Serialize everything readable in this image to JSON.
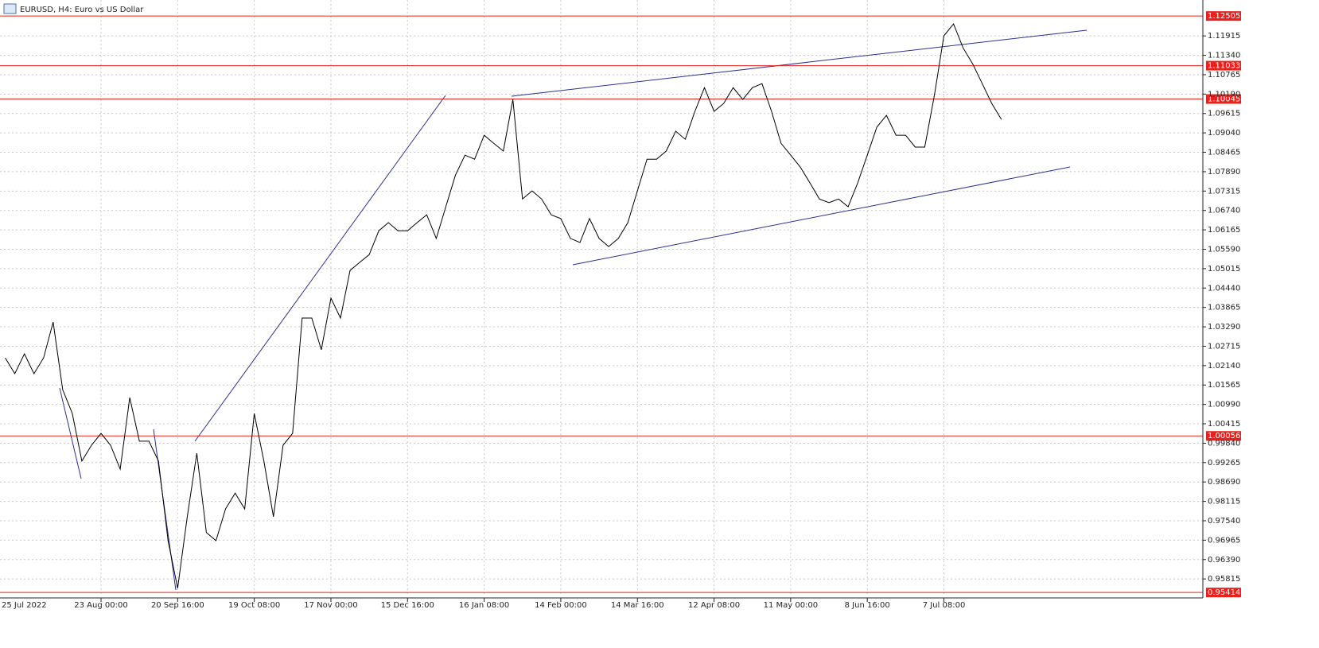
{
  "chart_data": {
    "type": "line",
    "title": "EURUSD, H4:  Euro vs US Dollar",
    "color": "#000000",
    "grid": true,
    "ylim": [
      0.953,
      1.1298
    ],
    "yticks": [
      1.11915,
      {
        "value": 1.1134,
        "label": "1.11340"
      },
      1.10765,
      {
        "value": 1.1019,
        "label": "1.10190"
      },
      1.09615,
      {
        "value": 1.0904,
        "label": "1.09040"
      },
      1.08465,
      {
        "value": 1.0789,
        "label": "1.07890"
      },
      1.07315,
      {
        "value": 1.0674,
        "label": "1.06740"
      },
      1.06165,
      {
        "value": 1.0559,
        "label": "1.05590"
      },
      1.05015,
      {
        "value": 1.0444,
        "label": "1.04440"
      },
      1.03865,
      {
        "value": 1.0329,
        "label": "1.03290"
      },
      1.02715,
      {
        "value": 1.0214,
        "label": "1.02140"
      },
      1.01565,
      {
        "value": 1.0099,
        "label": "1.00990"
      },
      1.00415,
      {
        "value": 0.9984,
        "label": "0.99840"
      },
      0.99265,
      {
        "value": 0.9869,
        "label": "0.98690"
      },
      0.98115,
      {
        "value": 0.9754,
        "label": "0.97540"
      },
      0.96965,
      {
        "value": 0.9639,
        "label": "0.96390"
      },
      0.95815
    ],
    "levels": [
      {
        "value": 1.12505,
        "color": "#e8211d"
      },
      {
        "value": 1.11033,
        "color": "#e8211d"
      },
      {
        "value": 1.10045,
        "color": "#e8211d"
      },
      {
        "value": 1.00056,
        "color": "#e8211d"
      },
      {
        "value": 0.95414,
        "color": "#e8211d"
      }
    ],
    "categories": [
      "25 Jul 2022",
      null,
      null,
      null,
      null,
      null,
      null,
      null,
      null,
      null,
      "23 Aug 00:00",
      null,
      null,
      null,
      null,
      null,
      null,
      null,
      "20 Sep 16:00",
      null,
      null,
      null,
      null,
      null,
      null,
      null,
      "19 Oct 08:00",
      null,
      null,
      null,
      null,
      null,
      null,
      null,
      "17 Nov 00:00",
      null,
      null,
      null,
      null,
      null,
      null,
      null,
      "15 Dec 16:00",
      null,
      null,
      null,
      null,
      null,
      null,
      null,
      "16 Jan 08:00",
      null,
      null,
      null,
      null,
      null,
      null,
      null,
      "14 Feb 00:00",
      null,
      null,
      null,
      null,
      null,
      null,
      null,
      "14 Mar 16:00",
      null,
      null,
      null,
      null,
      null,
      null,
      null,
      "12 Apr 08:00",
      null,
      null,
      null,
      null,
      null,
      null,
      null,
      "11 May 00:00",
      null,
      null,
      null,
      null,
      null,
      null,
      null,
      "8 Jun 16:00",
      null,
      null,
      null,
      null,
      null,
      null,
      null,
      "7 Jul 08:00",
      null,
      null,
      null,
      null,
      null,
      null,
      null,
      null,
      null,
      null,
      null,
      null,
      null,
      null,
      null,
      null,
      null,
      null,
      null,
      null,
      null,
      null,
      null,
      null,
      null,
      null,
      null
    ],
    "values": [
      1.0237,
      1.019,
      1.0249,
      1.019,
      1.0237,
      1.0343,
      1.0143,
      1.0072,
      0.9931,
      0.9978,
      1.0013,
      0.9978,
      0.9907,
      1.0119,
      0.999,
      0.999,
      0.9931,
      0.9695,
      0.9554,
      0.9766,
      0.9954,
      0.9719,
      0.9695,
      0.9789,
      0.9836,
      0.9789,
      1.0072,
      0.9931,
      0.9766,
      0.9978,
      1.0013,
      1.0355,
      1.0355,
      1.0261,
      1.0414,
      1.0355,
      1.0496,
      1.052,
      1.0543,
      1.0614,
      1.0638,
      1.0614,
      1.0614,
      1.0638,
      1.0661,
      1.0591,
      1.0685,
      1.0779,
      1.0838,
      1.0826,
      1.0897,
      1.0873,
      1.085,
      1.1003,
      1.0708,
      1.0732,
      1.0708,
      1.0661,
      1.065,
      1.0591,
      1.0579,
      1.065,
      1.0591,
      1.0567,
      1.0591,
      1.0638,
      1.0732,
      1.0826,
      1.0826,
      1.085,
      1.0909,
      1.0885,
      1.0968,
      1.1038,
      1.0968,
      1.0991,
      1.1038,
      1.1003,
      1.1038,
      1.105,
      1.0968,
      1.0873,
      1.0838,
      1.0803,
      1.0756,
      1.0708,
      1.0697,
      1.0708,
      1.0685,
      1.0756,
      1.0838,
      1.0921,
      1.0956,
      1.0897,
      1.0897,
      1.0862,
      1.0862,
      1.1015,
      1.1192,
      1.1227,
      1.1156,
      1.1109,
      1.105,
      1.0991,
      1.0944,
      null,
      null,
      null,
      null,
      null,
      null,
      null,
      null,
      null,
      null,
      null,
      null,
      null,
      null,
      null,
      null,
      null,
      null,
      null,
      null,
      null
    ]
  }
}
